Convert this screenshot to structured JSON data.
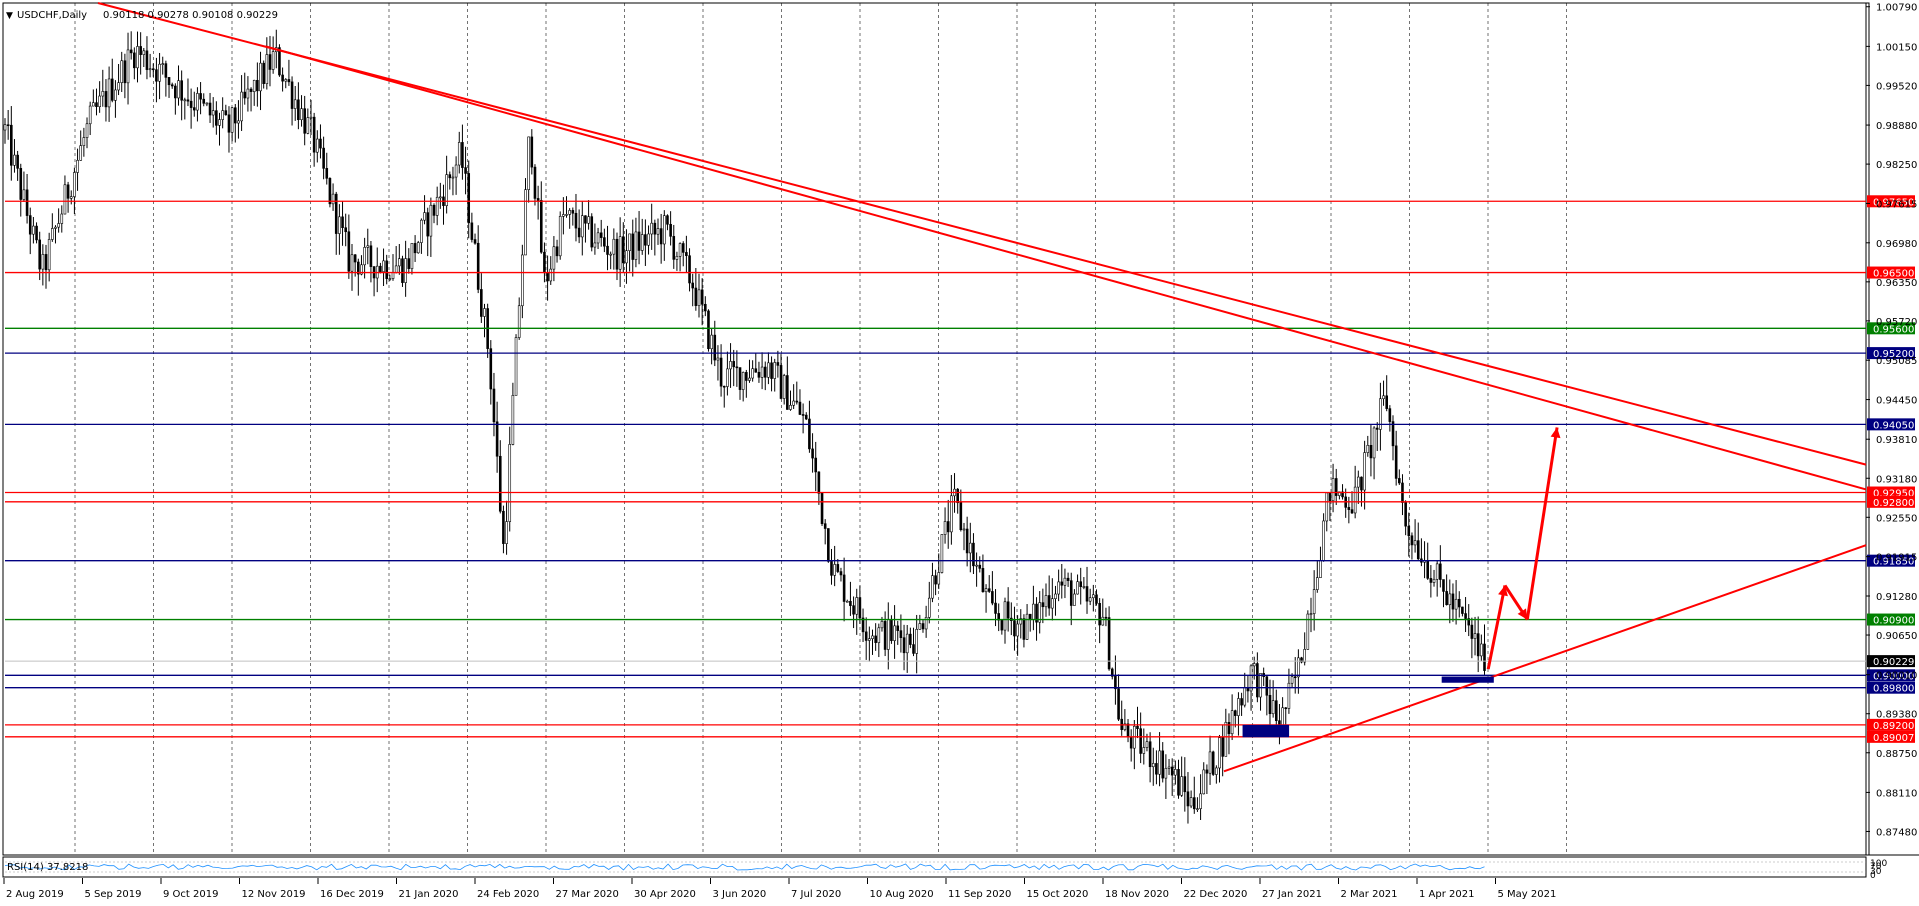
{
  "header": {
    "symbol_label": "USDCHF,Daily",
    "ohlc_values": "0.90118 0.90278 0.90108 0.90229"
  },
  "rsi_panel": {
    "label": "RSI(14) 37.8218",
    "scale_labels": [
      "100",
      "70",
      "30",
      "0"
    ]
  },
  "colors": {
    "red": "#ff0000",
    "green": "#008000",
    "navy": "#000080",
    "candle": "#000000",
    "grid": "#000000",
    "rsi_line": "#1e90ff",
    "current_price_tag": "#000000"
  },
  "chart_data": {
    "type": "candlestick",
    "symbol": "USDCHF",
    "timeframe": "Daily",
    "ylim": [
      0.871,
      1.0085
    ],
    "y_ticks": [
      "1.00790",
      "1.00150",
      "0.99520",
      "0.98880",
      "0.98250",
      "0.97615",
      "0.96980",
      "0.96350",
      "0.95720",
      "0.95085",
      "0.94450",
      "0.93810",
      "0.93180",
      "0.92550",
      "0.91915",
      "0.91280",
      "0.90650",
      "0.90010",
      "0.89380",
      "0.88750",
      "0.88110",
      "0.87480"
    ],
    "x_labels": [
      "2 Aug 2019",
      "5 Sep 2019",
      "9 Oct 2019",
      "12 Nov 2019",
      "16 Dec 2019",
      "21 Jan 2020",
      "24 Feb 2020",
      "27 Mar 2020",
      "30 Apr 2020",
      "3 Jun 2020",
      "7 Jul 2020",
      "10 Aug 2020",
      "11 Sep 2020",
      "15 Oct 2020",
      "18 Nov 2020",
      "22 Dec 2020",
      "27 Jan 2021",
      "2 Mar 2021",
      "1 Apr 2021",
      "5 May 2021"
    ],
    "current_price": "0.90229",
    "price_path": [
      {
        "t": 0,
        "p": 0.988
      },
      {
        "t": 0.02,
        "p": 0.965
      },
      {
        "t": 0.045,
        "p": 0.989
      },
      {
        "t": 0.07,
        "p": 1.001
      },
      {
        "t": 0.1,
        "p": 0.993
      },
      {
        "t": 0.12,
        "p": 0.988
      },
      {
        "t": 0.145,
        "p": 1.0
      },
      {
        "t": 0.165,
        "p": 0.987
      },
      {
        "t": 0.185,
        "p": 0.967
      },
      {
        "t": 0.215,
        "p": 0.966
      },
      {
        "t": 0.245,
        "p": 0.984
      },
      {
        "t": 0.26,
        "p": 0.952
      },
      {
        "t": 0.268,
        "p": 0.92
      },
      {
        "t": 0.282,
        "p": 0.988
      },
      {
        "t": 0.29,
        "p": 0.963
      },
      {
        "t": 0.3,
        "p": 0.974
      },
      {
        "t": 0.33,
        "p": 0.968
      },
      {
        "t": 0.355,
        "p": 0.972
      },
      {
        "t": 0.37,
        "p": 0.963
      },
      {
        "t": 0.385,
        "p": 0.948
      },
      {
        "t": 0.41,
        "p": 0.95
      },
      {
        "t": 0.43,
        "p": 0.941
      },
      {
        "t": 0.445,
        "p": 0.917
      },
      {
        "t": 0.465,
        "p": 0.907
      },
      {
        "t": 0.49,
        "p": 0.906
      },
      {
        "t": 0.51,
        "p": 0.928
      },
      {
        "t": 0.53,
        "p": 0.91
      },
      {
        "t": 0.55,
        "p": 0.908
      },
      {
        "t": 0.565,
        "p": 0.915
      },
      {
        "t": 0.59,
        "p": 0.91
      },
      {
        "t": 0.6,
        "p": 0.891
      },
      {
        "t": 0.625,
        "p": 0.885
      },
      {
        "t": 0.638,
        "p": 0.879
      },
      {
        "t": 0.655,
        "p": 0.89
      },
      {
        "t": 0.67,
        "p": 0.901
      },
      {
        "t": 0.685,
        "p": 0.892
      },
      {
        "t": 0.695,
        "p": 0.901
      },
      {
        "t": 0.705,
        "p": 0.918
      },
      {
        "t": 0.712,
        "p": 0.93
      },
      {
        "t": 0.725,
        "p": 0.928
      },
      {
        "t": 0.742,
        "p": 0.945
      },
      {
        "t": 0.752,
        "p": 0.925
      },
      {
        "t": 0.77,
        "p": 0.915
      },
      {
        "t": 0.785,
        "p": 0.908
      },
      {
        "t": 0.795,
        "p": 0.9023
      }
    ],
    "horizontal_levels": [
      {
        "price": "0.97650",
        "color": "red"
      },
      {
        "price": "0.96500",
        "color": "red"
      },
      {
        "price": "0.95600",
        "color": "green"
      },
      {
        "price": "0.95200",
        "color": "navy"
      },
      {
        "price": "0.94050",
        "color": "navy"
      },
      {
        "price": "0.92950",
        "color": "red"
      },
      {
        "price": "0.92800",
        "color": "red"
      },
      {
        "price": "0.91850",
        "color": "navy"
      },
      {
        "price": "0.90900",
        "color": "green"
      },
      {
        "price": "0.90000",
        "color": "navy"
      },
      {
        "price": "0.89800",
        "color": "navy"
      },
      {
        "price": "0.89200",
        "color": "red"
      },
      {
        "price": "0.89007",
        "color": "red"
      }
    ],
    "trendlines": [
      {
        "from": {
          "t": 0.05,
          "p": 1.0085
        },
        "to": {
          "t": 1.0,
          "p": 0.934
        },
        "color": "red"
      },
      {
        "from": {
          "t": 0.14,
          "p": 1.0015
        },
        "to": {
          "t": 1.0,
          "p": 0.93
        },
        "color": "red"
      },
      {
        "from": {
          "t": 0.655,
          "p": 0.8845
        },
        "to": {
          "t": 1.0,
          "p": 0.921
        },
        "color": "red"
      }
    ],
    "projection_path": [
      {
        "t": 0.797,
        "p": 0.901
      },
      {
        "t": 0.806,
        "p": 0.9145
      },
      {
        "t": 0.818,
        "p": 0.909
      },
      {
        "t": 0.834,
        "p": 0.94
      }
    ],
    "zones": [
      {
        "t1": 0.665,
        "t2": 0.69,
        "p1": 0.892,
        "p2": 0.89
      },
      {
        "t1": 0.772,
        "t2": 0.8,
        "p1": 0.8998,
        "p2": 0.8988
      }
    ]
  }
}
